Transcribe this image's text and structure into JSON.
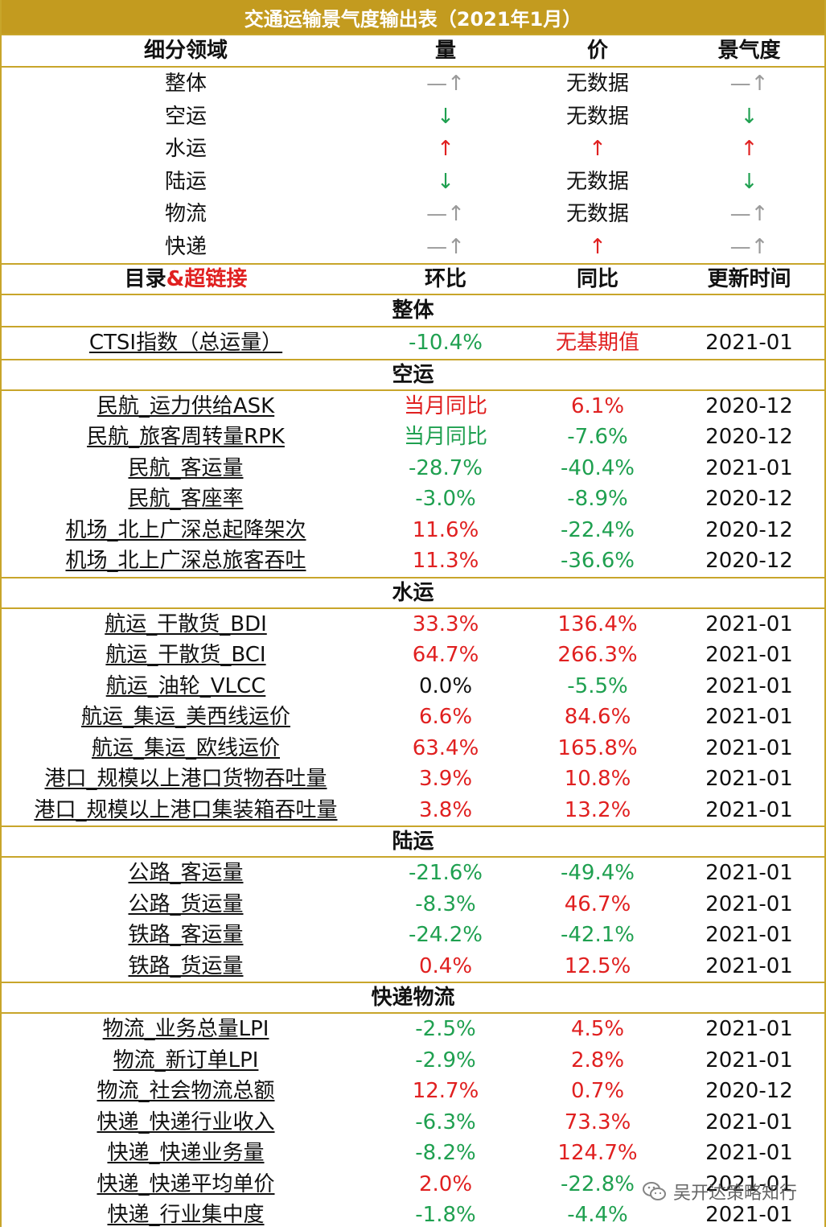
{
  "title": "交通运输景气度输出表（2021年1月）",
  "summary_header": {
    "col1": "细分领域",
    "col2": "量",
    "col3": "价",
    "col4": "景气度"
  },
  "summary_rows": [
    {
      "name": "整体",
      "volume": "—↑",
      "volume_color": "#9a9a9a",
      "price": "无数据",
      "price_color": "#111111",
      "boom": "—↑",
      "boom_color": "#9a9a9a"
    },
    {
      "name": "空运",
      "volume": "↓",
      "volume_color": "#1fa050",
      "price": "无数据",
      "price_color": "#111111",
      "boom": "↓",
      "boom_color": "#1fa050"
    },
    {
      "name": "水运",
      "volume": "↑",
      "volume_color": "#e02020",
      "price": "↑",
      "price_color": "#e02020",
      "boom": "↑",
      "boom_color": "#e02020"
    },
    {
      "name": "陆运",
      "volume": "↓",
      "volume_color": "#1fa050",
      "price": "无数据",
      "price_color": "#111111",
      "boom": "↓",
      "boom_color": "#1fa050"
    },
    {
      "name": "物流",
      "volume": "—↑",
      "volume_color": "#9a9a9a",
      "price": "无数据",
      "price_color": "#111111",
      "boom": "—↑",
      "boom_color": "#9a9a9a"
    },
    {
      "name": "快递",
      "volume": "—↑",
      "volume_color": "#9a9a9a",
      "price": "↑",
      "price_color": "#e02020",
      "boom": "—↑",
      "boom_color": "#9a9a9a"
    }
  ],
  "detail_header": {
    "col1_a": "目录",
    "col1_b": "&超链接",
    "col2": "环比",
    "col3": "同比",
    "col4": "更新时间"
  },
  "sections": [
    {
      "title": "整体",
      "rows": [
        {
          "name": "CTSI指数（总运量）",
          "mom": "-10.4%",
          "mom_color": "#1fa050",
          "yoy": "无基期值",
          "yoy_color": "#e02020",
          "date": "2021-01"
        }
      ]
    },
    {
      "title": "空运",
      "rows": [
        {
          "name": "民航_运力供给ASK",
          "mom": "当月同比",
          "mom_color": "#e02020",
          "yoy": "6.1%",
          "yoy_color": "#e02020",
          "date": "2020-12"
        },
        {
          "name": "民航_旅客周转量RPK",
          "mom": "当月同比",
          "mom_color": "#1fa050",
          "yoy": "-7.6%",
          "yoy_color": "#1fa050",
          "date": "2020-12"
        },
        {
          "name": "民航_客运量",
          "mom": "-28.7%",
          "mom_color": "#1fa050",
          "yoy": "-40.4%",
          "yoy_color": "#1fa050",
          "date": "2021-01"
        },
        {
          "name": "民航_客座率",
          "mom": "-3.0%",
          "mom_color": "#1fa050",
          "yoy": "-8.9%",
          "yoy_color": "#1fa050",
          "date": "2020-12"
        },
        {
          "name": "机场_北上广深总起降架次",
          "mom": "11.6%",
          "mom_color": "#e02020",
          "yoy": "-22.4%",
          "yoy_color": "#1fa050",
          "date": "2020-12"
        },
        {
          "name": "机场_北上广深总旅客吞吐",
          "mom": "11.3%",
          "mom_color": "#e02020",
          "yoy": "-36.6%",
          "yoy_color": "#1fa050",
          "date": "2020-12"
        }
      ]
    },
    {
      "title": "水运",
      "rows": [
        {
          "name": "航运_干散货_BDI",
          "mom": "33.3%",
          "mom_color": "#e02020",
          "yoy": "136.4%",
          "yoy_color": "#e02020",
          "date": "2021-01"
        },
        {
          "name": "航运_干散货_BCI",
          "mom": "64.7%",
          "mom_color": "#e02020",
          "yoy": "266.3%",
          "yoy_color": "#e02020",
          "date": "2021-01"
        },
        {
          "name": "航运_油轮_VLCC",
          "mom": "0.0%",
          "mom_color": "#111111",
          "yoy": "-5.5%",
          "yoy_color": "#1fa050",
          "date": "2021-01"
        },
        {
          "name": "航运_集运_美西线运价",
          "mom": "6.6%",
          "mom_color": "#e02020",
          "yoy": "84.6%",
          "yoy_color": "#e02020",
          "date": "2021-01"
        },
        {
          "name": "航运_集运_欧线运价",
          "mom": "63.4%",
          "mom_color": "#e02020",
          "yoy": "165.8%",
          "yoy_color": "#e02020",
          "date": "2021-01"
        },
        {
          "name": "港口_规模以上港口货物吞吐量",
          "mom": "3.9%",
          "mom_color": "#e02020",
          "yoy": "10.8%",
          "yoy_color": "#e02020",
          "date": "2021-01"
        },
        {
          "name": "港口_规模以上港口集装箱吞吐量",
          "mom": "3.8%",
          "mom_color": "#e02020",
          "yoy": "13.2%",
          "yoy_color": "#e02020",
          "date": "2021-01"
        }
      ]
    },
    {
      "title": "陆运",
      "rows": [
        {
          "name": "公路_客运量",
          "mom": "-21.6%",
          "mom_color": "#1fa050",
          "yoy": "-49.4%",
          "yoy_color": "#1fa050",
          "date": "2021-01"
        },
        {
          "name": "公路_货运量",
          "mom": "-8.3%",
          "mom_color": "#1fa050",
          "yoy": "46.7%",
          "yoy_color": "#e02020",
          "date": "2021-01"
        },
        {
          "name": "铁路_客运量",
          "mom": "-24.2%",
          "mom_color": "#1fa050",
          "yoy": "-42.1%",
          "yoy_color": "#1fa050",
          "date": "2021-01"
        },
        {
          "name": "铁路_货运量",
          "mom": "0.4%",
          "mom_color": "#e02020",
          "yoy": "12.5%",
          "yoy_color": "#e02020",
          "date": "2021-01"
        }
      ]
    },
    {
      "title": "快递物流",
      "rows": [
        {
          "name": "物流_业务总量LPI",
          "mom": "-2.5%",
          "mom_color": "#1fa050",
          "yoy": "4.5%",
          "yoy_color": "#e02020",
          "date": "2021-01"
        },
        {
          "name": "物流_新订单LPI",
          "mom": "-2.9%",
          "mom_color": "#1fa050",
          "yoy": "2.8%",
          "yoy_color": "#e02020",
          "date": "2021-01"
        },
        {
          "name": "物流_社会物流总额",
          "mom": "12.7%",
          "mom_color": "#e02020",
          "yoy": "0.7%",
          "yoy_color": "#e02020",
          "date": "2020-12"
        },
        {
          "name": "快递_快递行业收入",
          "mom": "-6.3%",
          "mom_color": "#1fa050",
          "yoy": "73.3%",
          "yoy_color": "#e02020",
          "date": "2021-01"
        },
        {
          "name": "快递_快递业务量",
          "mom": "-8.2%",
          "mom_color": "#1fa050",
          "yoy": "124.7%",
          "yoy_color": "#e02020",
          "date": "2021-01"
        },
        {
          "name": "快递_快递平均单价",
          "mom": "2.0%",
          "mom_color": "#e02020",
          "yoy": "-22.8%",
          "yoy_color": "#1fa050",
          "date": "2021-01"
        },
        {
          "name": "快递_行业集中度",
          "mom": "-1.8%",
          "mom_color": "#1fa050",
          "yoy": "-4.4%",
          "yoy_color": "#1fa050",
          "date": "2021-01"
        }
      ]
    }
  ],
  "watermark": "吴开达策略知行",
  "watermark_icon": "wechat-icon",
  "colors": {
    "gold": "#c39b1f",
    "border": "#c8a52a",
    "up": "#e02020",
    "down": "#1fa050",
    "flat": "#9a9a9a"
  }
}
